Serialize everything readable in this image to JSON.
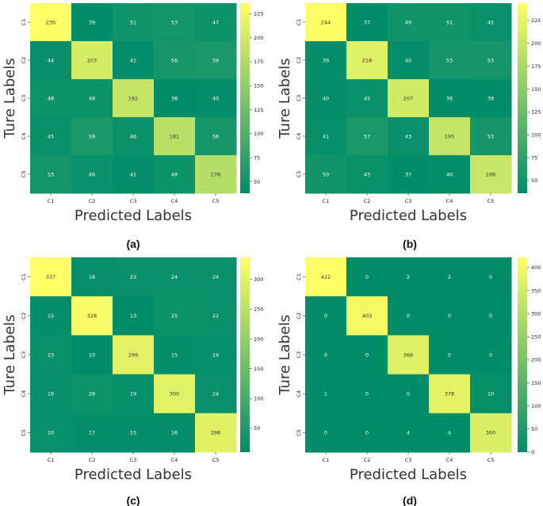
{
  "chart_data": [
    {
      "type": "heatmap",
      "panel_label": "(a)",
      "xlabel": "Predicted Labels",
      "ylabel": "Ture Labels",
      "x_categories": [
        "C1",
        "C2",
        "C3",
        "C4",
        "C5"
      ],
      "y_categories": [
        "C1",
        "C2",
        "C3",
        "C4",
        "C5"
      ],
      "values": [
        [
          236,
          39,
          51,
          53,
          47
        ],
        [
          44,
          203,
          41,
          56,
          59
        ],
        [
          48,
          48,
          192,
          38,
          40
        ],
        [
          45,
          59,
          46,
          181,
          56
        ],
        [
          53,
          46,
          41,
          48,
          178
        ]
      ],
      "colorbar_range": [
        38,
        236
      ],
      "colorbar_ticks": [
        50,
        75,
        100,
        125,
        150,
        175,
        200,
        225
      ]
    },
    {
      "type": "heatmap",
      "panel_label": "(b)",
      "xlabel": "Predicted Labels",
      "ylabel": "Ture Labels",
      "x_categories": [
        "C1",
        "C2",
        "C3",
        "C4",
        "C5"
      ],
      "y_categories": [
        "C1",
        "C2",
        "C3",
        "C4",
        "C5"
      ],
      "values": [
        [
          244,
          37,
          49,
          51,
          45
        ],
        [
          39,
          218,
          40,
          53,
          53
        ],
        [
          40,
          45,
          207,
          36,
          38
        ],
        [
          41,
          57,
          43,
          195,
          53
        ],
        [
          50,
          43,
          37,
          40,
          198
        ]
      ],
      "colorbar_range": [
        36,
        244
      ],
      "colorbar_ticks": [
        50,
        75,
        100,
        125,
        150,
        175,
        200,
        225
      ]
    },
    {
      "type": "heatmap",
      "panel_label": "(c)",
      "xlabel": "Predicted Labels",
      "ylabel": "Ture Labels",
      "x_categories": [
        "C1",
        "C2",
        "C3",
        "C4",
        "C5"
      ],
      "y_categories": [
        "C1",
        "C2",
        "C3",
        "C4",
        "C5"
      ],
      "values": [
        [
          337,
          18,
          23,
          24,
          24
        ],
        [
          15,
          328,
          13,
          25,
          22
        ],
        [
          23,
          10,
          299,
          15,
          19
        ],
        [
          18,
          28,
          19,
          300,
          24
        ],
        [
          20,
          17,
          15,
          16,
          298
        ]
      ],
      "colorbar_range": [
        10,
        337
      ],
      "colorbar_ticks": [
        50,
        100,
        150,
        200,
        250,
        300
      ]
    },
    {
      "type": "heatmap",
      "panel_label": "(d)",
      "xlabel": "Predicted Labels",
      "ylabel": "Ture Labels",
      "x_categories": [
        "C1",
        "C2",
        "C3",
        "C4",
        "C5"
      ],
      "y_categories": [
        "C1",
        "C2",
        "C3",
        "C4",
        "C5"
      ],
      "values": [
        [
          422,
          0,
          2,
          2,
          0
        ],
        [
          0,
          403,
          0,
          0,
          0
        ],
        [
          0,
          0,
          366,
          0,
          0
        ],
        [
          1,
          0,
          0,
          378,
          10
        ],
        [
          0,
          0,
          4,
          4,
          360
        ]
      ],
      "colorbar_range": [
        0,
        422
      ],
      "colorbar_ticks": [
        0,
        50,
        100,
        150,
        200,
        250,
        300,
        350,
        400
      ]
    }
  ],
  "colors": {
    "low": "#008c69",
    "high": "#ffff66",
    "text_dark": "#333333",
    "text_light": "#ffffff"
  }
}
